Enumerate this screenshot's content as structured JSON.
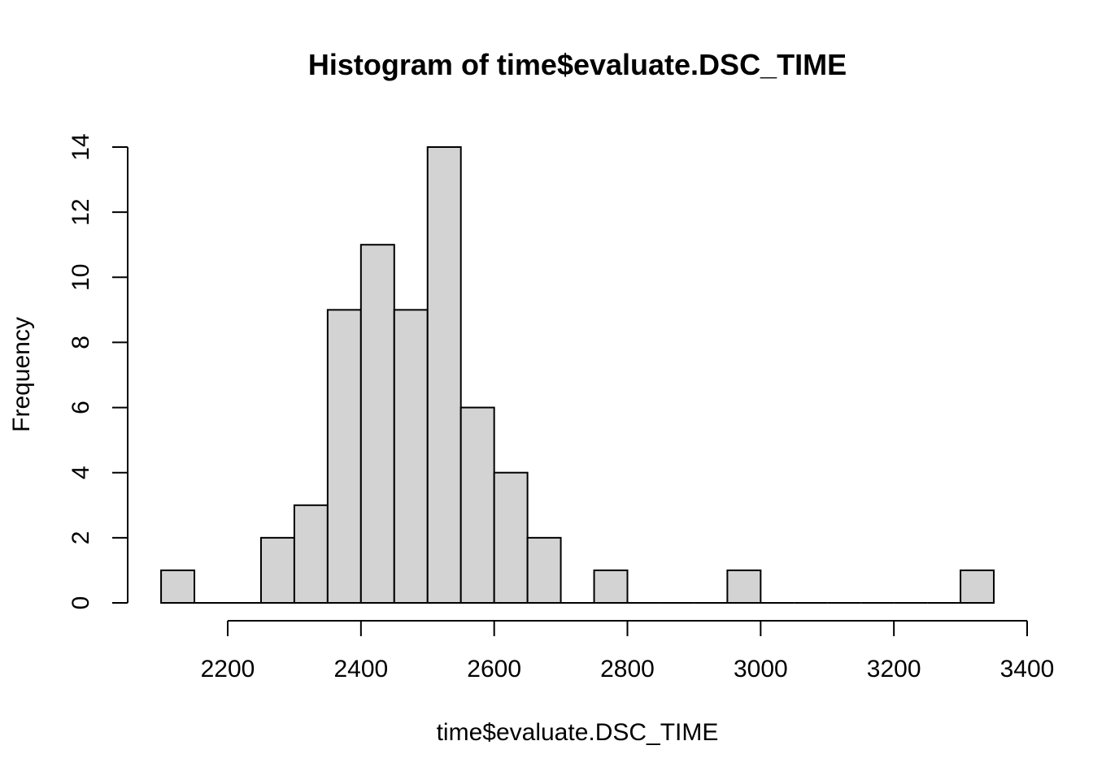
{
  "chart_data": {
    "type": "bar",
    "title": "Histogram of time$evaluate.DSC_TIME",
    "xlabel": "time$evaluate.DSC_TIME",
    "ylabel": "Frequency",
    "bins": [
      {
        "start": 2100,
        "end": 2150,
        "count": 1
      },
      {
        "start": 2150,
        "end": 2200,
        "count": 0
      },
      {
        "start": 2200,
        "end": 2250,
        "count": 0
      },
      {
        "start": 2250,
        "end": 2300,
        "count": 2
      },
      {
        "start": 2300,
        "end": 2350,
        "count": 3
      },
      {
        "start": 2350,
        "end": 2400,
        "count": 9
      },
      {
        "start": 2400,
        "end": 2450,
        "count": 11
      },
      {
        "start": 2450,
        "end": 2500,
        "count": 9
      },
      {
        "start": 2500,
        "end": 2550,
        "count": 14
      },
      {
        "start": 2550,
        "end": 2600,
        "count": 6
      },
      {
        "start": 2600,
        "end": 2650,
        "count": 4
      },
      {
        "start": 2650,
        "end": 2700,
        "count": 2
      },
      {
        "start": 2700,
        "end": 2750,
        "count": 0
      },
      {
        "start": 2750,
        "end": 2800,
        "count": 1
      },
      {
        "start": 2800,
        "end": 2850,
        "count": 0
      },
      {
        "start": 2850,
        "end": 2900,
        "count": 0
      },
      {
        "start": 2900,
        "end": 2950,
        "count": 0
      },
      {
        "start": 2950,
        "end": 3000,
        "count": 1
      },
      {
        "start": 3000,
        "end": 3050,
        "count": 0
      },
      {
        "start": 3050,
        "end": 3100,
        "count": 0
      },
      {
        "start": 3100,
        "end": 3150,
        "count": 0
      },
      {
        "start": 3150,
        "end": 3200,
        "count": 0
      },
      {
        "start": 3200,
        "end": 3250,
        "count": 0
      },
      {
        "start": 3250,
        "end": 3300,
        "count": 0
      },
      {
        "start": 3300,
        "end": 3350,
        "count": 1
      }
    ],
    "x_ticks": [
      2200,
      2400,
      2600,
      2800,
      3000,
      3200,
      3400
    ],
    "y_ticks": [
      0,
      2,
      4,
      6,
      8,
      10,
      12,
      14
    ],
    "xlim": [
      2200,
      3400
    ],
    "ylim": [
      0,
      14
    ],
    "grid": false,
    "colors": {
      "bar_fill": "#d3d3d3",
      "bar_stroke": "#000000"
    }
  }
}
